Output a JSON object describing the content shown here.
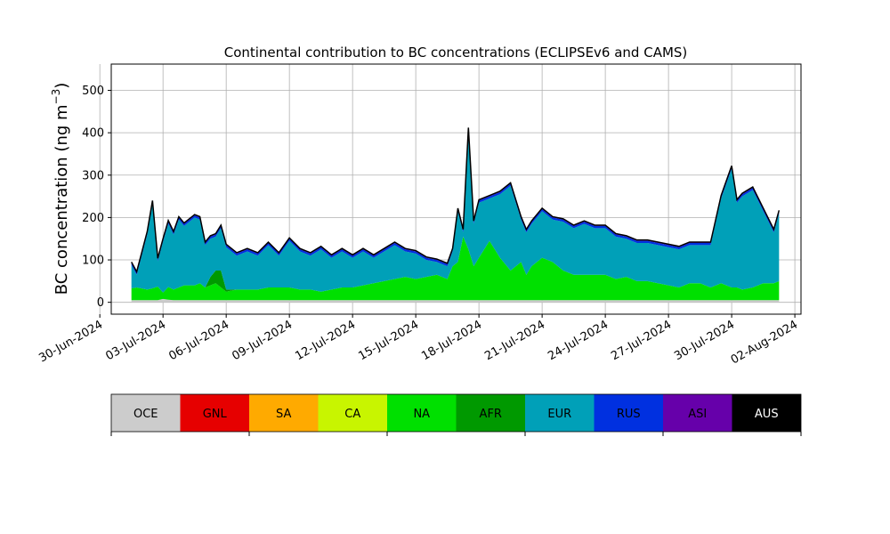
{
  "chart_data": {
    "type": "area",
    "stacked": true,
    "title": "Continental contribution to BC concentrations (ECLIPSEv6 and CAMS)",
    "ylabel_base": "BC concentration (ng m",
    "ylabel_exp": "−3",
    "ylabel_close": ")",
    "ylim": [
      -28,
      562
    ],
    "yticks": [
      0,
      100,
      200,
      300,
      400,
      500
    ],
    "ytick_labels": [
      "0",
      "100",
      "200",
      "300",
      "400",
      "500"
    ],
    "xlim": [
      "2024-06-30T13:00",
      "2024-08-02T07:00"
    ],
    "xticks": [
      "2024-06-30",
      "2024-07-03",
      "2024-07-06",
      "2024-07-09",
      "2024-07-12",
      "2024-07-15",
      "2024-07-18",
      "2024-07-21",
      "2024-07-24",
      "2024-07-27",
      "2024-07-30",
      "2024-08-02"
    ],
    "xtick_labels": [
      "30-Jun-2024",
      "03-Jul-2024",
      "06-Jul-2024",
      "09-Jul-2024",
      "12-Jul-2024",
      "15-Jul-2024",
      "18-Jul-2024",
      "21-Jul-2024",
      "24-Jul-2024",
      "27-Jul-2024",
      "30-Jul-2024",
      "02-Aug-2024"
    ],
    "grid": true,
    "x": [
      "2024-07-01T12:00",
      "2024-07-01T18:00",
      "2024-07-02T06:00",
      "2024-07-02T12:00",
      "2024-07-02T18:00",
      "2024-07-03T00:00",
      "2024-07-03T06:00",
      "2024-07-03T12:00",
      "2024-07-03T18:00",
      "2024-07-04T00:00",
      "2024-07-04T12:00",
      "2024-07-04T18:00",
      "2024-07-05T00:00",
      "2024-07-05T06:00",
      "2024-07-05T12:00",
      "2024-07-05T18:00",
      "2024-07-06T00:00",
      "2024-07-06T12:00",
      "2024-07-07T00:00",
      "2024-07-07T12:00",
      "2024-07-08T00:00",
      "2024-07-08T12:00",
      "2024-07-09T00:00",
      "2024-07-09T12:00",
      "2024-07-10T00:00",
      "2024-07-10T12:00",
      "2024-07-11T00:00",
      "2024-07-11T12:00",
      "2024-07-12T00:00",
      "2024-07-12T12:00",
      "2024-07-13T00:00",
      "2024-07-13T12:00",
      "2024-07-14T00:00",
      "2024-07-14T12:00",
      "2024-07-15T00:00",
      "2024-07-15T12:00",
      "2024-07-16T00:00",
      "2024-07-16T12:00",
      "2024-07-16T18:00",
      "2024-07-17T00:00",
      "2024-07-17T06:00",
      "2024-07-17T12:00",
      "2024-07-17T18:00",
      "2024-07-18T00:00",
      "2024-07-18T12:00",
      "2024-07-19T00:00",
      "2024-07-19T12:00",
      "2024-07-20T00:00",
      "2024-07-20T06:00",
      "2024-07-20T12:00",
      "2024-07-21T00:00",
      "2024-07-21T12:00",
      "2024-07-22T00:00",
      "2024-07-22T12:00",
      "2024-07-23T00:00",
      "2024-07-23T12:00",
      "2024-07-24T00:00",
      "2024-07-24T12:00",
      "2024-07-25T00:00",
      "2024-07-25T12:00",
      "2024-07-26T00:00",
      "2024-07-26T12:00",
      "2024-07-27T00:00",
      "2024-07-27T12:00",
      "2024-07-28T00:00",
      "2024-07-28T12:00",
      "2024-07-29T00:00",
      "2024-07-29T12:00",
      "2024-07-30T00:00",
      "2024-07-30T06:00",
      "2024-07-30T12:00",
      "2024-07-31T00:00",
      "2024-07-31T12:00",
      "2024-08-01T00:00",
      "2024-08-01T06:00"
    ],
    "series": [
      {
        "name": "OCE",
        "color": "#cccccc",
        "values": [
          5,
          5,
          5,
          5,
          5,
          8,
          6,
          5,
          5,
          5,
          5,
          5,
          5,
          5,
          5,
          5,
          5,
          5,
          5,
          5,
          5,
          5,
          5,
          5,
          5,
          5,
          5,
          5,
          5,
          5,
          5,
          5,
          5,
          5,
          5,
          5,
          5,
          5,
          5,
          5,
          5,
          5,
          5,
          5,
          5,
          5,
          5,
          5,
          5,
          5,
          5,
          5,
          5,
          5,
          5,
          5,
          5,
          5,
          5,
          5,
          5,
          5,
          5,
          5,
          5,
          5,
          5,
          5,
          5,
          5,
          5,
          5,
          5,
          5,
          5
        ]
      },
      {
        "name": "GNL",
        "color": "#e60000",
        "values": [
          0,
          0,
          0,
          0,
          0,
          0,
          0,
          0,
          0,
          0,
          0,
          0,
          0,
          0,
          0,
          0,
          0,
          0,
          0,
          0,
          0,
          0,
          0,
          0,
          0,
          0,
          0,
          0,
          0,
          0,
          0,
          0,
          0,
          0,
          0,
          0,
          0,
          0,
          0,
          0,
          0,
          0,
          0,
          0,
          0,
          0,
          0,
          0,
          0,
          0,
          0,
          0,
          0,
          0,
          0,
          0,
          0,
          0,
          0,
          0,
          0,
          0,
          0,
          0,
          0,
          0,
          0,
          0,
          0,
          0,
          0,
          0,
          0,
          0,
          0
        ]
      },
      {
        "name": "SA",
        "color": "#ffaa00",
        "values": [
          0,
          0,
          0,
          0,
          0,
          0,
          0,
          0,
          0,
          0,
          0,
          0,
          0,
          0,
          0,
          0,
          0,
          0,
          0,
          0,
          0,
          0,
          0,
          0,
          0,
          0,
          0,
          0,
          0,
          0,
          0,
          0,
          0,
          0,
          0,
          0,
          0,
          0,
          0,
          0,
          0,
          0,
          0,
          0,
          0,
          0,
          0,
          0,
          0,
          0,
          0,
          0,
          0,
          0,
          0,
          0,
          0,
          0,
          0,
          0,
          0,
          0,
          0,
          0,
          0,
          0,
          0,
          0,
          0,
          0,
          0,
          0,
          0,
          0,
          0
        ]
      },
      {
        "name": "CA",
        "color": "#c8f500",
        "values": [
          0,
          0,
          0,
          0,
          0,
          0,
          0,
          0,
          0,
          0,
          0,
          0,
          0,
          0,
          0,
          0,
          0,
          0,
          0,
          0,
          0,
          0,
          0,
          0,
          0,
          0,
          0,
          0,
          0,
          0,
          0,
          0,
          0,
          0,
          0,
          0,
          0,
          0,
          0,
          0,
          0,
          0,
          0,
          0,
          0,
          0,
          0,
          0,
          0,
          0,
          0,
          0,
          0,
          0,
          0,
          0,
          0,
          0,
          0,
          0,
          0,
          0,
          0,
          0,
          0,
          0,
          0,
          0,
          0,
          0,
          0,
          0,
          0,
          0,
          0
        ]
      },
      {
        "name": "NA",
        "color": "#00e000",
        "values": [
          28,
          30,
          25,
          28,
          32,
          15,
          30,
          25,
          30,
          35,
          35,
          40,
          30,
          35,
          40,
          30,
          20,
          25,
          25,
          25,
          30,
          30,
          30,
          25,
          25,
          20,
          25,
          30,
          30,
          35,
          40,
          45,
          50,
          55,
          50,
          55,
          60,
          50,
          80,
          90,
          150,
          120,
          80,
          100,
          140,
          100,
          70,
          90,
          60,
          80,
          100,
          90,
          70,
          60,
          60,
          60,
          60,
          50,
          55,
          45,
          45,
          40,
          35,
          30,
          40,
          40,
          30,
          40,
          30,
          30,
          25,
          30,
          40,
          40,
          45
        ]
      },
      {
        "name": "AFR",
        "color": "#009900",
        "values": [
          0,
          0,
          0,
          0,
          0,
          0,
          0,
          0,
          0,
          0,
          0,
          0,
          0,
          20,
          30,
          40,
          5,
          0,
          0,
          0,
          0,
          0,
          0,
          0,
          0,
          0,
          0,
          0,
          0,
          0,
          0,
          0,
          0,
          0,
          0,
          0,
          0,
          0,
          0,
          0,
          0,
          0,
          0,
          0,
          0,
          0,
          0,
          0,
          0,
          0,
          0,
          0,
          0,
          0,
          0,
          0,
          0,
          0,
          0,
          0,
          0,
          0,
          0,
          0,
          0,
          0,
          0,
          0,
          0,
          0,
          0,
          0,
          0,
          0,
          0
        ]
      },
      {
        "name": "EUR",
        "color": "#00a0b8",
        "values": [
          55,
          30,
          130,
          200,
          60,
          120,
          150,
          130,
          160,
          140,
          160,
          150,
          100,
          90,
          80,
          100,
          100,
          80,
          90,
          80,
          100,
          75,
          110,
          90,
          80,
          100,
          75,
          85,
          70,
          80,
          60,
          70,
          80,
          60,
          60,
          40,
          30,
          30,
          35,
          120,
          10,
          280,
          100,
          130,
          100,
          150,
          200,
          100,
          100,
          100,
          110,
          100,
          115,
          110,
          120,
          110,
          110,
          100,
          90,
          90,
          90,
          90,
          90,
          90,
          90,
          90,
          100,
          200,
          280,
          200,
          220,
          230,
          170,
          120,
          160
        ]
      },
      {
        "name": "RUS",
        "color": "#0030e0",
        "values": [
          5,
          5,
          5,
          5,
          5,
          5,
          5,
          5,
          5,
          5,
          5,
          5,
          5,
          5,
          5,
          5,
          5,
          5,
          5,
          5,
          5,
          5,
          5,
          5,
          5,
          5,
          5,
          5,
          5,
          5,
          5,
          5,
          5,
          5,
          5,
          5,
          5,
          5,
          5,
          5,
          5,
          5,
          5,
          5,
          5,
          5,
          5,
          5,
          5,
          5,
          5,
          5,
          5,
          5,
          5,
          5,
          5,
          5,
          5,
          5,
          5,
          5,
          5,
          5,
          5,
          5,
          5,
          5,
          5,
          5,
          5,
          5,
          5,
          5,
          5
        ]
      },
      {
        "name": "ASI",
        "color": "#6600aa",
        "values": [
          2,
          2,
          2,
          2,
          2,
          2,
          2,
          2,
          2,
          2,
          2,
          2,
          2,
          2,
          2,
          2,
          2,
          2,
          2,
          2,
          2,
          2,
          2,
          2,
          2,
          2,
          2,
          2,
          2,
          2,
          2,
          2,
          2,
          2,
          2,
          2,
          2,
          2,
          2,
          2,
          2,
          2,
          2,
          2,
          2,
          2,
          2,
          2,
          2,
          2,
          2,
          2,
          2,
          2,
          2,
          2,
          2,
          2,
          2,
          2,
          2,
          2,
          2,
          2,
          2,
          2,
          2,
          2,
          2,
          2,
          2,
          2,
          2,
          2,
          2
        ]
      },
      {
        "name": "AUS",
        "color": "#000000",
        "values": [
          0,
          0,
          0,
          0,
          0,
          0,
          0,
          0,
          0,
          0,
          0,
          0,
          0,
          0,
          0,
          0,
          0,
          0,
          0,
          0,
          0,
          0,
          0,
          0,
          0,
          0,
          0,
          0,
          0,
          0,
          0,
          0,
          0,
          0,
          0,
          0,
          0,
          0,
          0,
          0,
          0,
          0,
          0,
          0,
          0,
          0,
          0,
          0,
          0,
          0,
          0,
          0,
          0,
          0,
          0,
          0,
          0,
          0,
          0,
          0,
          0,
          0,
          0,
          0,
          0,
          0,
          0,
          0,
          0,
          0,
          0,
          0,
          0,
          0,
          0
        ]
      }
    ],
    "legend": {
      "placement": "below",
      "colorbar": true,
      "entries": [
        {
          "label": "OCE",
          "color": "#cccccc",
          "text_color": "#000000"
        },
        {
          "label": "GNL",
          "color": "#e60000",
          "text_color": "#000000"
        },
        {
          "label": "SA",
          "color": "#ffaa00",
          "text_color": "#000000"
        },
        {
          "label": "CA",
          "color": "#c8f500",
          "text_color": "#000000"
        },
        {
          "label": "NA",
          "color": "#00e000",
          "text_color": "#000000"
        },
        {
          "label": "AFR",
          "color": "#009900",
          "text_color": "#000000"
        },
        {
          "label": "EUR",
          "color": "#00a0b8",
          "text_color": "#000000"
        },
        {
          "label": "RUS",
          "color": "#0030e0",
          "text_color": "#000000"
        },
        {
          "label": "ASI",
          "color": "#6600aa",
          "text_color": "#000000"
        },
        {
          "label": "AUS",
          "color": "#000000",
          "text_color": "#ffffff"
        }
      ]
    }
  }
}
